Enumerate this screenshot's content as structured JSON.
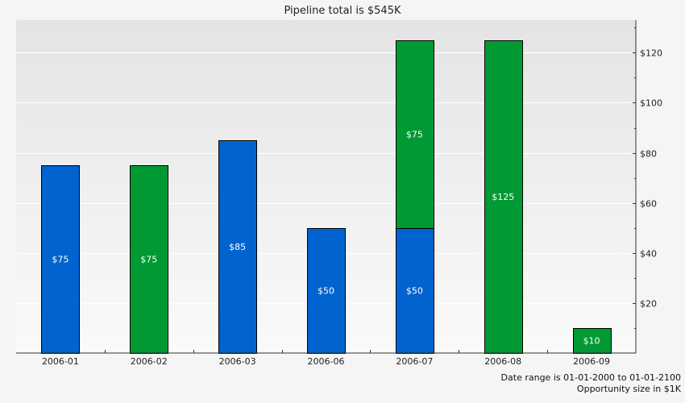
{
  "chart_data": {
    "type": "bar",
    "stacked": true,
    "title": "Pipeline total is $545K",
    "categories": [
      "2006-01",
      "2006-02",
      "2006-03",
      "2006-06",
      "2006-07",
      "2006-08",
      "2006-09"
    ],
    "series": [
      {
        "color": "#0063cf",
        "values": [
          75,
          0,
          85,
          50,
          50,
          0,
          0
        ],
        "labels": [
          "$75",
          "",
          "$85",
          "$50",
          "$50",
          "",
          ""
        ]
      },
      {
        "color": "#009933",
        "values": [
          0,
          75,
          0,
          0,
          75,
          125,
          10
        ],
        "labels": [
          "",
          "$75",
          "",
          "",
          "$75",
          "$125",
          "$10"
        ]
      }
    ],
    "ylim": [
      0,
      133
    ],
    "y_ticks": [
      20,
      40,
      60,
      80,
      100,
      120
    ],
    "y_tick_labels": [
      "$20",
      "$40",
      "$60",
      "$80",
      "$100",
      "$120"
    ],
    "y_axis_side": "right",
    "grid": true
  },
  "footer": {
    "date_range": "Date range is 01-01-2000 to 01-01-2100",
    "size_note": "Opportunity size in $1K"
  }
}
